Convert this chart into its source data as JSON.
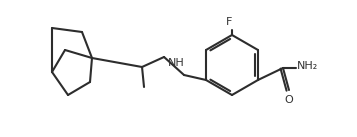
{
  "bg_color": "#ffffff",
  "line_color": "#2d2d2d",
  "line_width": 1.5,
  "figsize": [
    3.57,
    1.37
  ],
  "dpi": 100,
  "F_label": "F",
  "NH_label": "NH",
  "O_label": "O",
  "NH2_label": "NH₂"
}
